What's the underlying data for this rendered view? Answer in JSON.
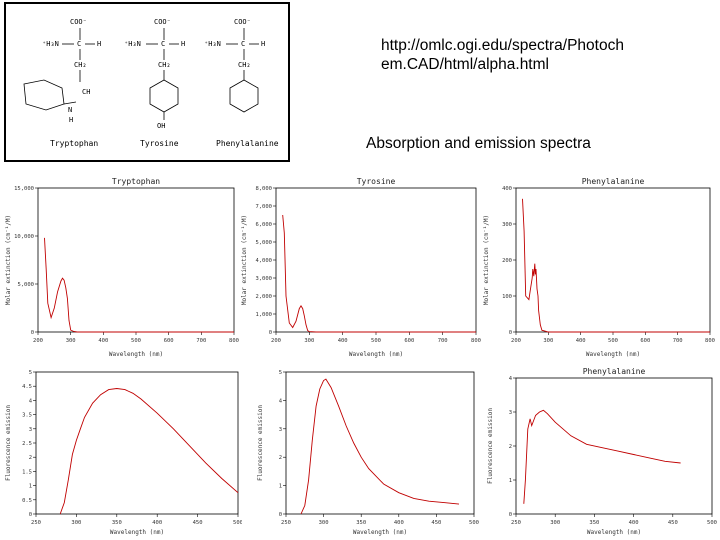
{
  "slide": {
    "url_line1": "http://omlc.ogi.edu/spectra/Photoch",
    "url_line2": "em.CAD/html/alpha.html",
    "subtitle": "Absorption and emission spectra"
  },
  "structures": [
    {
      "name": "Tryptophan",
      "coo": "COO⁻",
      "nh3": "⁺H₃N",
      "c": "C",
      "h": "H",
      "ch2": "CH₂",
      "nh": "N",
      "h2": "H",
      "ch": "CH",
      "caption": "Tryptophan"
    },
    {
      "name": "Tyrosine",
      "coo": "COO⁻",
      "nh3": "⁺H₃N",
      "c": "C",
      "h": "H",
      "ch2": "CH₂",
      "oh": "OH",
      "caption": "Tyrosine"
    },
    {
      "name": "Phenylalanine",
      "coo": "COO⁻",
      "nh3": "⁺H₃N",
      "c": "C",
      "h": "H",
      "ch2": "CH₂",
      "caption": "Phenylalanine"
    }
  ],
  "chart_data": [
    {
      "type": "line",
      "title": "Tryptophan",
      "ylabel": "Molar extinction (cm⁻¹/M)",
      "xlabel": "Wavelength (nm)",
      "xlim": [
        200,
        800
      ],
      "ylim": [
        0,
        15000
      ],
      "xticks": [
        "200",
        "300",
        "400",
        "500",
        "600",
        "700",
        "800"
      ],
      "yticks": [
        "0",
        "5,000",
        "10,000",
        "15,000"
      ],
      "x": [
        220,
        225,
        230,
        240,
        250,
        260,
        270,
        275,
        280,
        285,
        290,
        295,
        300,
        310,
        320,
        400,
        800
      ],
      "y": [
        9800,
        6500,
        3000,
        1500,
        2500,
        4200,
        5300,
        5600,
        5400,
        4600,
        3500,
        1200,
        200,
        50,
        0,
        0,
        0
      ]
    },
    {
      "type": "line",
      "title": "Tyrosine",
      "ylabel": "Molar extinction (cm⁻¹/M)",
      "xlabel": "Wavelength (nm)",
      "xlim": [
        200,
        800
      ],
      "ylim": [
        0,
        8000
      ],
      "xticks": [
        "200",
        "300",
        "400",
        "500",
        "600",
        "700",
        "800"
      ],
      "yticks": [
        "0",
        "1,000",
        "2,000",
        "3,000",
        "4,000",
        "5,000",
        "6,000",
        "7,000",
        "8,000"
      ],
      "x": [
        220,
        225,
        230,
        240,
        250,
        260,
        270,
        275,
        280,
        285,
        290,
        295,
        300,
        320,
        400,
        800
      ],
      "y": [
        6500,
        5500,
        2000,
        500,
        250,
        600,
        1300,
        1450,
        1300,
        900,
        400,
        80,
        20,
        0,
        0,
        0
      ]
    },
    {
      "type": "line",
      "title": "Phenylalanine",
      "ylabel": "Molar extinction (cm⁻¹/M)",
      "xlabel": "Wavelength (nm)",
      "xlim": [
        200,
        800
      ],
      "ylim": [
        0,
        400
      ],
      "xticks": [
        "200",
        "300",
        "400",
        "500",
        "600",
        "700",
        "800"
      ],
      "yticks": [
        "0",
        "100",
        "200",
        "300",
        "400"
      ],
      "x": [
        220,
        225,
        230,
        240,
        245,
        250,
        252,
        255,
        258,
        260,
        262,
        265,
        268,
        270,
        275,
        280,
        300,
        800
      ],
      "y": [
        370,
        280,
        100,
        90,
        120,
        150,
        175,
        155,
        190,
        160,
        175,
        120,
        100,
        60,
        20,
        5,
        0,
        0
      ]
    },
    {
      "type": "line",
      "title": "",
      "ylabel": "Fluorescence emission",
      "xlabel": "Wavelength (nm)",
      "xlim": [
        250,
        500
      ],
      "ylim": [
        0,
        5
      ],
      "xticks": [
        "250",
        "300",
        "350",
        "400",
        "450",
        "500"
      ],
      "yticks": [
        "0",
        "0.5",
        "1",
        "1.5",
        "2",
        "2.5",
        "3",
        "3.5",
        "4",
        "4.5",
        "5"
      ],
      "x": [
        280,
        285,
        290,
        295,
        300,
        305,
        310,
        320,
        330,
        340,
        350,
        360,
        370,
        380,
        400,
        420,
        440,
        460,
        480,
        500
      ],
      "y": [
        0,
        0.4,
        1.2,
        2.1,
        2.6,
        3.0,
        3.4,
        3.9,
        4.2,
        4.38,
        4.42,
        4.38,
        4.25,
        4.05,
        3.55,
        3.0,
        2.4,
        1.8,
        1.25,
        0.75
      ]
    },
    {
      "type": "line",
      "title": "",
      "ylabel": "Fluorescence emission",
      "xlabel": "Wavelength (nm)",
      "xlim": [
        250,
        500
      ],
      "ylim": [
        0,
        5
      ],
      "xticks": [
        "250",
        "300",
        "350",
        "400",
        "450",
        "500"
      ],
      "yticks": [
        "0",
        "1",
        "2",
        "3",
        "4",
        "5"
      ],
      "x": [
        270,
        275,
        280,
        285,
        290,
        295,
        300,
        303,
        310,
        320,
        330,
        340,
        350,
        360,
        380,
        400,
        420,
        440,
        460,
        480
      ],
      "y": [
        0,
        0.3,
        1.2,
        2.6,
        3.8,
        4.4,
        4.7,
        4.75,
        4.45,
        3.8,
        3.1,
        2.5,
        2.0,
        1.6,
        1.05,
        0.75,
        0.55,
        0.45,
        0.4,
        0.35
      ]
    },
    {
      "type": "line",
      "title": "Phenylalanine",
      "ylabel": "Fluorescence emission",
      "xlabel": "Wavelength (nm)",
      "xlim": [
        250,
        500
      ],
      "ylim": [
        0,
        4
      ],
      "xticks": [
        "250",
        "300",
        "350",
        "400",
        "450",
        "500"
      ],
      "yticks": [
        "0",
        "1",
        "2",
        "3",
        "4"
      ],
      "x": [
        260,
        262,
        265,
        268,
        270,
        275,
        280,
        285,
        290,
        300,
        320,
        340,
        360,
        380,
        400,
        420,
        440,
        460
      ],
      "y": [
        0.3,
        1.0,
        2.5,
        2.8,
        2.6,
        2.9,
        3.0,
        3.05,
        2.95,
        2.7,
        2.3,
        2.05,
        1.95,
        1.85,
        1.75,
        1.65,
        1.55,
        1.5
      ]
    }
  ]
}
